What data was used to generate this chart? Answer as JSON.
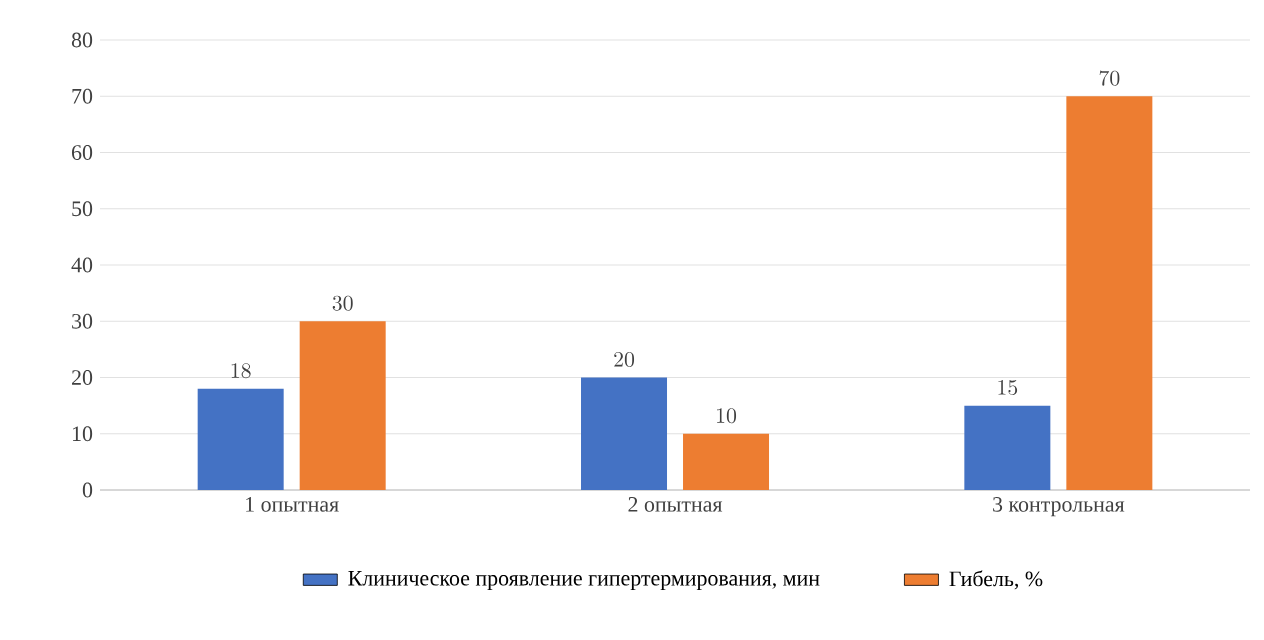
{
  "chart_data": {
    "type": "bar",
    "categories": [
      "1 опытная",
      "2 опытная",
      "3 контрольная"
    ],
    "series": [
      {
        "name": "Клиническое проявление гипертермирования, мин",
        "color": "#4472c4",
        "values": [
          18,
          20,
          15
        ]
      },
      {
        "name": "Гибель, %",
        "color": "#ed7d31",
        "values": [
          30,
          10,
          70
        ]
      }
    ],
    "ylim": [
      0,
      80
    ],
    "yticks": [
      0,
      10,
      20,
      30,
      40,
      50,
      60,
      70,
      80
    ],
    "grid": "y",
    "legend": "bottom",
    "data_labels": true
  }
}
